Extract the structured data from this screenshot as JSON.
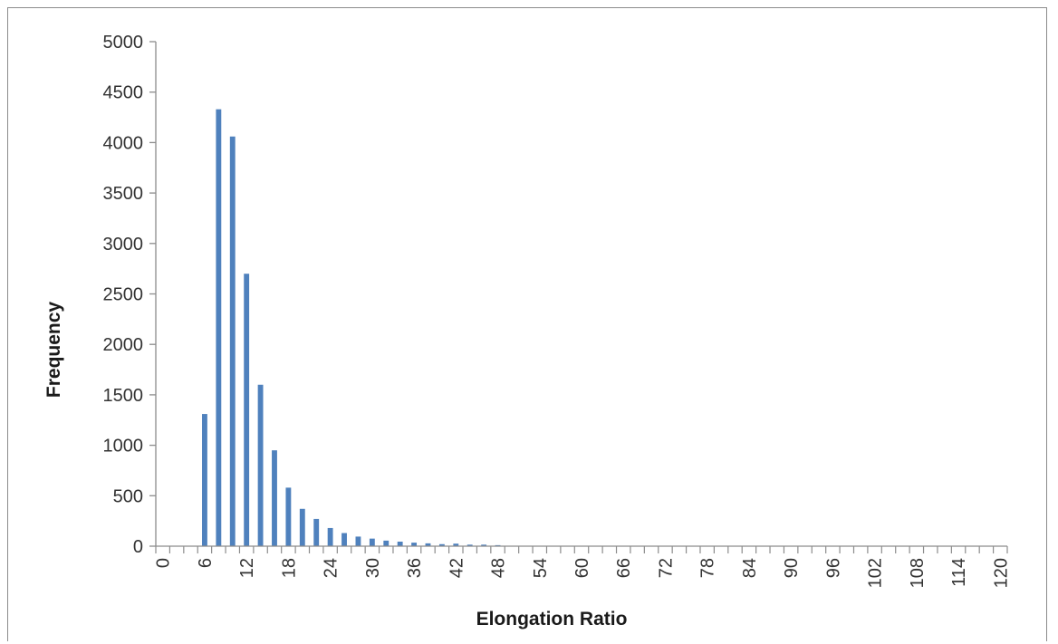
{
  "chart_data": {
    "type": "bar",
    "title": "",
    "xlabel": "Elongation Ratio",
    "ylabel": "Frequency",
    "ylim": [
      0,
      5000
    ],
    "yticks": [
      0,
      500,
      1000,
      1500,
      2000,
      2500,
      3000,
      3500,
      4000,
      4500,
      5000
    ],
    "xlim": [
      0,
      122
    ],
    "bin_width": 2,
    "xticks": [
      0,
      6,
      12,
      18,
      24,
      30,
      36,
      42,
      48,
      54,
      60,
      66,
      72,
      78,
      84,
      90,
      96,
      102,
      108,
      114,
      120
    ],
    "x": [
      6,
      8,
      10,
      12,
      14,
      16,
      18,
      20,
      22,
      24,
      26,
      28,
      30,
      32,
      34,
      36,
      38,
      40,
      42,
      44,
      46,
      48
    ],
    "values": [
      1310,
      4330,
      4060,
      2700,
      1600,
      950,
      580,
      370,
      270,
      180,
      130,
      95,
      75,
      55,
      45,
      35,
      28,
      20,
      25,
      15,
      15,
      10
    ],
    "bar_color": "#4f81bd",
    "grid": false,
    "legend": "none"
  }
}
